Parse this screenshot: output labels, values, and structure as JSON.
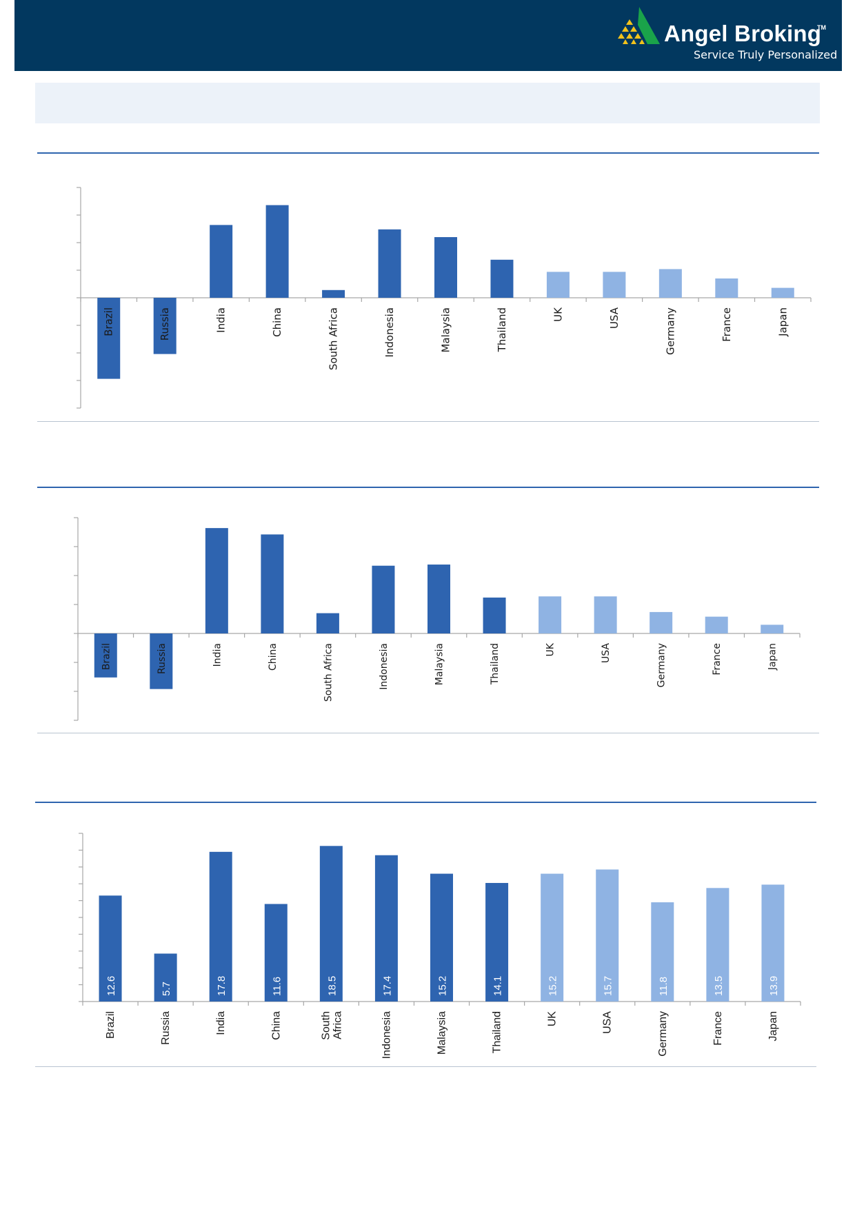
{
  "header": {
    "brand": "Angel Broking",
    "trademark": "TM",
    "tagline": "Service Truly Personalized",
    "logo_icon": "pyramid-logo-icon",
    "background_color": "#02385f"
  },
  "colors": {
    "emerging": "#2e64b0",
    "developed": "#8fb3e3",
    "rule": "#2e64ae"
  },
  "chart_data": [
    {
      "type": "bar",
      "title": "",
      "categories": [
        "Brazil",
        "Russia",
        "India",
        "China",
        "South Africa",
        "Indonesia",
        "Malaysia",
        "Thailand",
        "UK",
        "USA",
        "Germany",
        "France",
        "Japan"
      ],
      "values": [
        -14.7,
        -10.2,
        13.2,
        16.8,
        1.4,
        12.4,
        11.0,
        6.9,
        4.7,
        4.7,
        5.2,
        3.5,
        1.8
      ],
      "groups": [
        "emerging",
        "emerging",
        "emerging",
        "emerging",
        "emerging",
        "emerging",
        "emerging",
        "emerging",
        "developed",
        "developed",
        "developed",
        "developed",
        "developed"
      ],
      "ylim": [
        -20,
        20
      ],
      "grid": false,
      "data_labels": false
    },
    {
      "type": "bar",
      "title": "",
      "categories": [
        "Brazil",
        "Russia",
        "India",
        "China",
        "South Africa",
        "Indonesia",
        "Malaysia",
        "Thailand",
        "UK",
        "USA",
        "Germany",
        "France",
        "Japan"
      ],
      "values": [
        -7.6,
        -9.6,
        18.2,
        17.1,
        3.5,
        11.7,
        11.9,
        6.2,
        6.4,
        6.4,
        3.7,
        2.9,
        1.5
      ],
      "groups": [
        "emerging",
        "emerging",
        "emerging",
        "emerging",
        "emerging",
        "emerging",
        "emerging",
        "emerging",
        "developed",
        "developed",
        "developed",
        "developed",
        "developed"
      ],
      "ylim": [
        -15,
        20
      ],
      "grid": false,
      "data_labels": false
    },
    {
      "type": "bar",
      "title": "",
      "categories": [
        "Brazil",
        "Russia",
        "India",
        "China",
        "South Africa",
        "Indonesia",
        "Malaysia",
        "Thailand",
        "UK",
        "USA",
        "Germany",
        "France",
        "Japan"
      ],
      "values": [
        12.6,
        5.7,
        17.8,
        11.6,
        18.5,
        17.4,
        15.2,
        14.1,
        15.2,
        15.7,
        11.8,
        13.5,
        13.9
      ],
      "labels": [
        "12.6",
        "5.7",
        "17.8",
        "11.6",
        "18.5",
        "17.4",
        "15.2",
        "14.1",
        "15.2",
        "15.7",
        "11.8",
        "13.5",
        "13.9"
      ],
      "groups": [
        "emerging",
        "emerging",
        "emerging",
        "emerging",
        "emerging",
        "emerging",
        "emerging",
        "emerging",
        "developed",
        "developed",
        "developed",
        "developed",
        "developed"
      ],
      "ylim": [
        0,
        20
      ],
      "grid": false,
      "data_labels": true
    }
  ]
}
